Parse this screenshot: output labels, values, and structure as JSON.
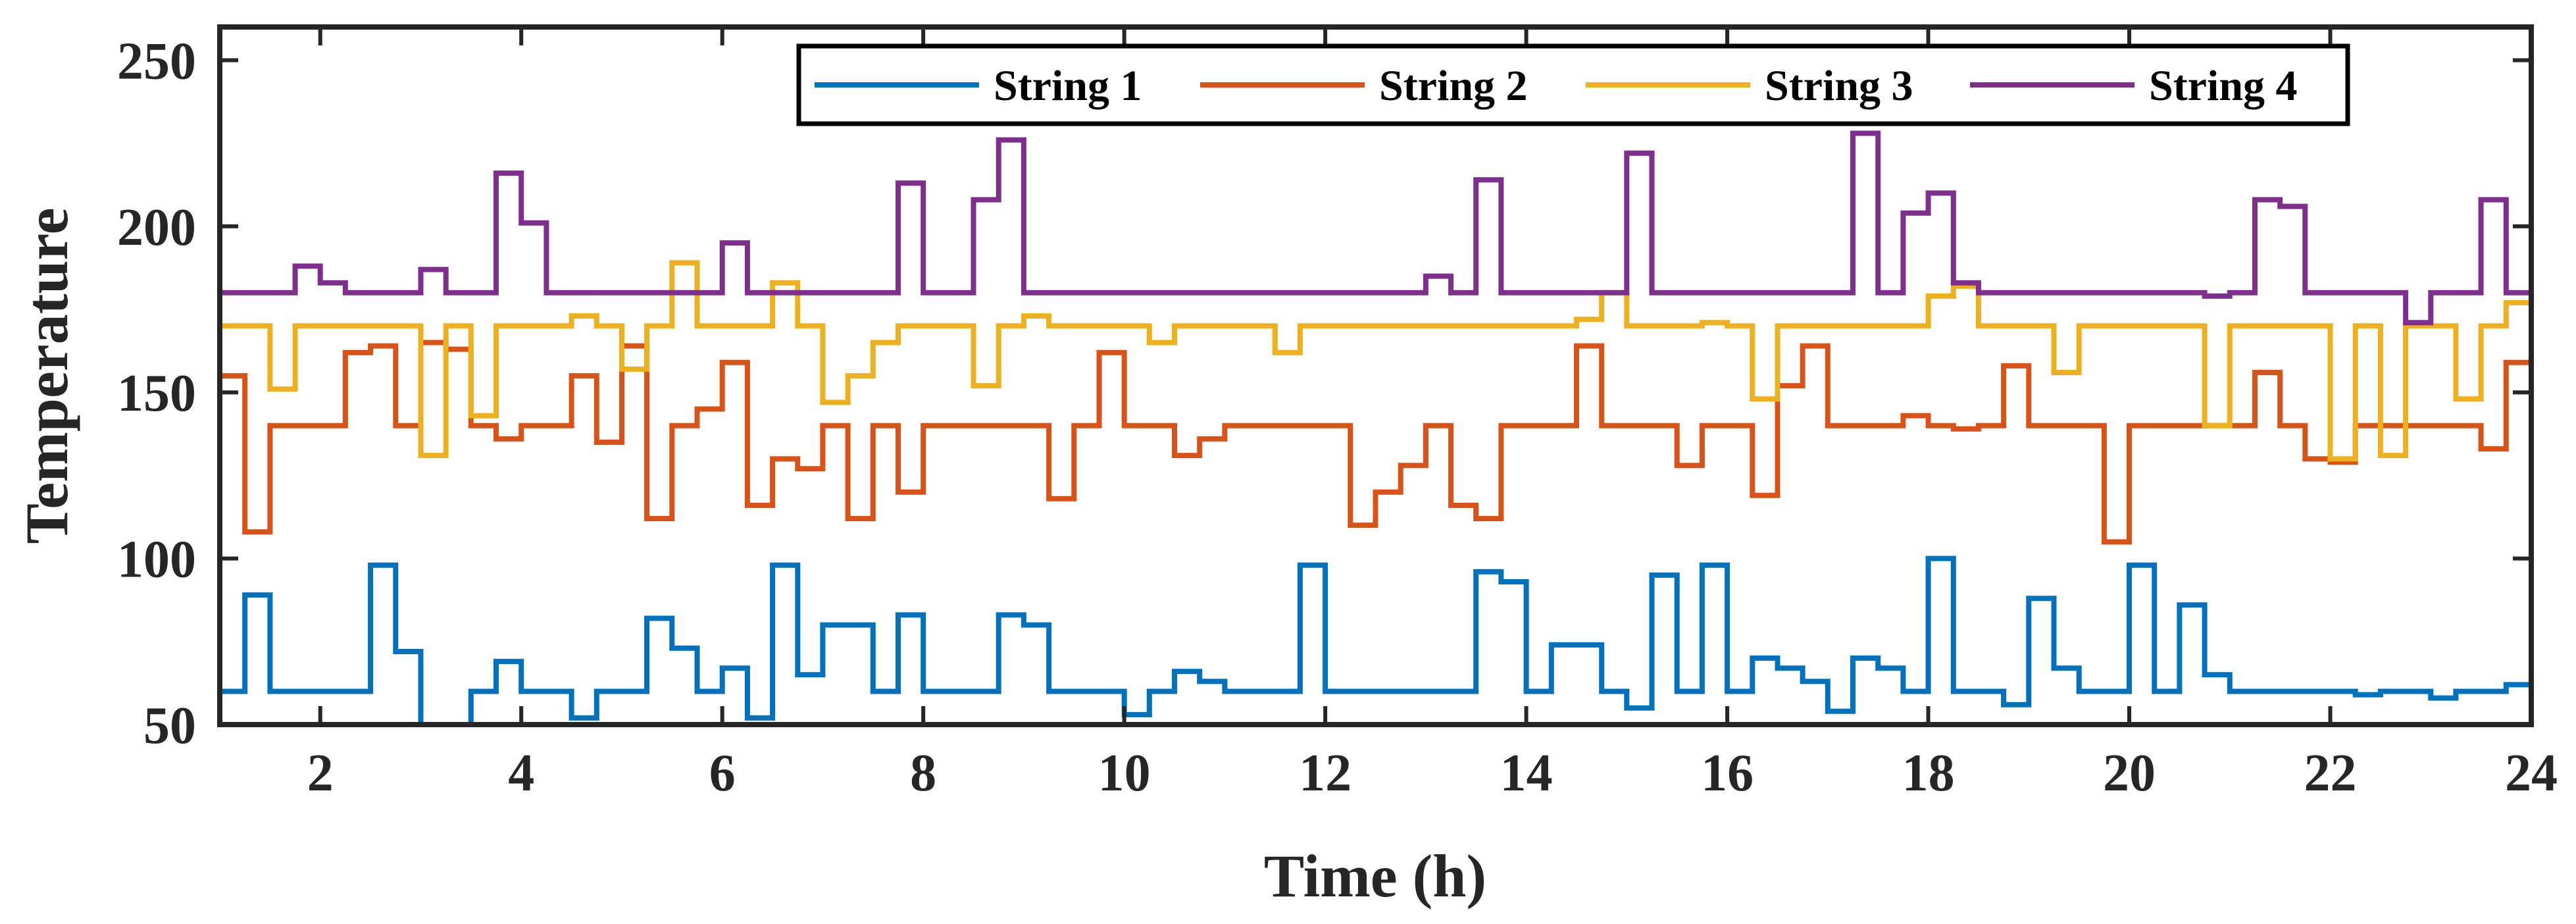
{
  "chart_data": {
    "type": "line",
    "step": true,
    "xlabel": "Time (h)",
    "ylabel": "Temperature",
    "xlim": [
      1,
      24
    ],
    "ylim": [
      50,
      260
    ],
    "xticks": [
      2,
      4,
      6,
      8,
      10,
      12,
      14,
      16,
      18,
      20,
      22,
      24
    ],
    "yticks": [
      50,
      100,
      150,
      200,
      250
    ],
    "legend_position": "top-center",
    "grid": false,
    "series": [
      {
        "name": "String 1",
        "color": "#0072BD",
        "x": [
          1,
          1.25,
          1.5,
          2.25,
          2.5,
          2.75,
          3,
          3.5,
          3.75,
          4,
          4.25,
          4.5,
          4.75,
          5.25,
          5.5,
          5.75,
          6,
          6.25,
          6.5,
          6.75,
          7,
          7.5,
          7.75,
          8,
          8.75,
          9,
          9.25,
          9.75,
          10,
          10.25,
          10.5,
          10.75,
          11,
          11.5,
          11.75,
          12,
          13.25,
          13.5,
          13.75,
          14,
          14.25,
          14.75,
          15,
          15.25,
          15.5,
          15.75,
          16,
          16.25,
          16.5,
          16.75,
          17,
          17.25,
          17.5,
          17.75,
          18,
          18.25,
          18.5,
          18.75,
          19,
          19.25,
          19.5,
          19.75,
          20,
          20.25,
          20.5,
          20.75,
          21,
          21.25,
          21.5,
          22.25,
          22.5,
          22.75,
          23,
          23.25,
          23.5,
          23.75,
          24
        ],
        "y": [
          60,
          89,
          60,
          60,
          98,
          72,
          50,
          60,
          69,
          60,
          60,
          52,
          60,
          82,
          73,
          60,
          67,
          52,
          98,
          65,
          80,
          60,
          83,
          60,
          83,
          80,
          60,
          60,
          53,
          60,
          66,
          63,
          60,
          60,
          98,
          60,
          60,
          96,
          93,
          60,
          74,
          60,
          55,
          95,
          60,
          98,
          60,
          70,
          67,
          63,
          54,
          70,
          67,
          60,
          100,
          60,
          60,
          56,
          88,
          67,
          60,
          60,
          98,
          60,
          86,
          65,
          60,
          60,
          60,
          59,
          60,
          60,
          58,
          60,
          60,
          62,
          62
        ]
      },
      {
        "name": "String 2",
        "color": "#D95319",
        "x": [
          1,
          1.25,
          1.5,
          2.25,
          2.5,
          2.75,
          3,
          3.25,
          3.5,
          3.75,
          4,
          4.25,
          4.5,
          4.75,
          5,
          5.25,
          5.5,
          5.75,
          6,
          6.25,
          6.5,
          6.75,
          7,
          7.25,
          7.5,
          7.75,
          8,
          8.25,
          8.5,
          9,
          9.25,
          9.5,
          9.75,
          10,
          10.25,
          10.5,
          10.75,
          11,
          11.25,
          11.5,
          12,
          12.25,
          12.5,
          12.75,
          13,
          13.25,
          13.5,
          13.75,
          14,
          14.25,
          14.5,
          14.75,
          15,
          15.25,
          15.5,
          15.75,
          16,
          16.25,
          16.5,
          16.75,
          17,
          17.25,
          17.5,
          17.75,
          18,
          18.25,
          18.5,
          18.75,
          19,
          19.25,
          19.5,
          19.75,
          20,
          20.25,
          20.5,
          20.75,
          21,
          21.25,
          21.5,
          21.75,
          22,
          22.25,
          22.5,
          22.75,
          23,
          23.25,
          23.5,
          23.75,
          24
        ],
        "y": [
          155,
          108,
          140,
          162,
          164,
          140,
          165,
          163,
          140,
          136,
          140,
          140,
          155,
          135,
          164,
          112,
          140,
          145,
          159,
          116,
          130,
          127,
          140,
          112,
          140,
          120,
          140,
          140,
          140,
          140,
          118,
          140,
          162,
          140,
          140,
          131,
          136,
          140,
          140,
          140,
          140,
          110,
          120,
          128,
          140,
          116,
          112,
          140,
          140,
          140,
          164,
          140,
          140,
          140,
          128,
          140,
          140,
          119,
          152,
          164,
          140,
          140,
          140,
          143,
          140,
          139,
          140,
          158,
          140,
          140,
          140,
          105,
          140,
          140,
          140,
          140,
          140,
          156,
          140,
          130,
          129,
          140,
          140,
          140,
          140,
          140,
          133,
          159,
          140
        ]
      },
      {
        "name": "String 3",
        "color": "#EDB120",
        "x": [
          1,
          1.5,
          1.75,
          2,
          3,
          3.25,
          3.5,
          3.75,
          4,
          4.25,
          4.5,
          4.75,
          5,
          5.25,
          5.5,
          5.75,
          6,
          6.25,
          6.5,
          6.75,
          7,
          7.25,
          7.5,
          7.75,
          8,
          8.5,
          8.75,
          9,
          9.25,
          9.5,
          10,
          10.25,
          10.5,
          11,
          11.25,
          11.5,
          11.75,
          12,
          13,
          14,
          14.5,
          14.75,
          15,
          15.5,
          15.75,
          16,
          16.25,
          16.5,
          16.75,
          17,
          17.75,
          18,
          18.25,
          18.5,
          19,
          19.25,
          19.5,
          19.75,
          20,
          20.5,
          20.75,
          21,
          21.25,
          21.5,
          21.75,
          22,
          22.25,
          22.5,
          22.75,
          23,
          23.25,
          23.5,
          23.75,
          24
        ],
        "y": [
          170,
          151,
          170,
          170,
          131,
          170,
          143,
          170,
          170,
          170,
          173,
          170,
          157,
          170,
          189,
          170,
          170,
          170,
          183,
          170,
          147,
          155,
          165,
          170,
          170,
          152,
          170,
          173,
          170,
          170,
          170,
          165,
          170,
          170,
          170,
          162,
          170,
          170,
          170,
          170,
          172,
          180,
          170,
          170,
          171,
          170,
          148,
          170,
          170,
          170,
          170,
          179,
          182,
          170,
          170,
          156,
          170,
          170,
          170,
          170,
          140,
          170,
          170,
          170,
          170,
          130,
          170,
          131,
          170,
          170,
          148,
          170,
          177,
          140
        ]
      },
      {
        "name": "String 4",
        "color": "#7E2F8E",
        "x": [
          1,
          1.5,
          1.75,
          2,
          2.25,
          2.75,
          3,
          3.25,
          3.5,
          3.75,
          4,
          4.25,
          5,
          5.5,
          5.75,
          6,
          6.25,
          6.75,
          7,
          7.5,
          7.75,
          8,
          8.25,
          8.5,
          8.75,
          9,
          12,
          12.75,
          13,
          13.25,
          13.5,
          13.75,
          14,
          14.5,
          14.75,
          15,
          15.25,
          15.5,
          16,
          16.5,
          17,
          17.25,
          17.5,
          17.75,
          18,
          18.25,
          18.5,
          19,
          20,
          20.5,
          20.75,
          21,
          21.25,
          21.5,
          21.75,
          22,
          22.5,
          22.75,
          23,
          23.25,
          23.5,
          23.75,
          24
        ],
        "y": [
          180,
          180,
          188,
          183,
          180,
          180,
          187,
          180,
          180,
          216,
          201,
          180,
          180,
          180,
          180,
          195,
          180,
          180,
          180,
          180,
          213,
          180,
          180,
          208,
          226,
          180,
          180,
          180,
          185,
          180,
          214,
          180,
          180,
          180,
          180,
          222,
          180,
          180,
          180,
          180,
          180,
          228,
          180,
          204,
          210,
          183,
          180,
          180,
          180,
          180,
          179,
          180,
          208,
          206,
          180,
          180,
          180,
          171,
          180,
          180,
          208,
          180,
          200
        ]
      }
    ]
  }
}
